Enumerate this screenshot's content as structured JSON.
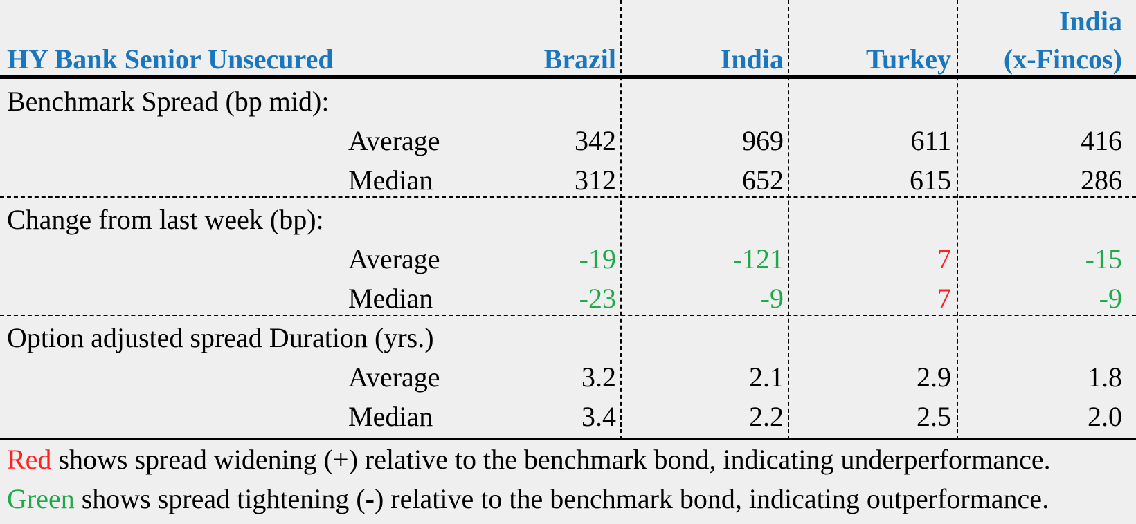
{
  "colors": {
    "header": "#1a76bd",
    "negative": "#1faa4a",
    "positive": "#ff2020"
  },
  "header": {
    "title": "HY Bank Senior Unsecured",
    "columns": [
      "Brazil",
      "India",
      "Turkey",
      "India (x-Fincos)"
    ],
    "col4_line1": "India",
    "col4_line2": "(x-Fincos)"
  },
  "sections": [
    {
      "title": "Benchmark Spread (bp mid):",
      "rows": [
        {
          "label": "Average",
          "values": [
            "342",
            "969",
            "611",
            "416"
          ],
          "colors": [
            "black",
            "black",
            "black",
            "black"
          ]
        },
        {
          "label": "Median",
          "values": [
            "312",
            "652",
            "615",
            "286"
          ],
          "colors": [
            "black",
            "black",
            "black",
            "black"
          ]
        }
      ]
    },
    {
      "title": "Change from last week (bp):",
      "rows": [
        {
          "label": "Average",
          "values": [
            "-19",
            "-121",
            "7",
            "-15"
          ],
          "colors": [
            "green",
            "green",
            "red",
            "green"
          ]
        },
        {
          "label": "Median",
          "values": [
            "-23",
            "-9",
            "7",
            "-9"
          ],
          "colors": [
            "green",
            "green",
            "red",
            "green"
          ]
        }
      ]
    },
    {
      "title": "Option adjusted spread Duration (yrs.)",
      "rows": [
        {
          "label": "Average",
          "values": [
            "3.2",
            "2.1",
            "2.9",
            "1.8"
          ],
          "colors": [
            "black",
            "black",
            "black",
            "black"
          ]
        },
        {
          "label": "Median",
          "values": [
            "3.4",
            "2.2",
            "2.5",
            "2.0"
          ],
          "colors": [
            "black",
            "black",
            "black",
            "black"
          ]
        }
      ]
    }
  ],
  "notes": [
    {
      "colored_word": "Red",
      "rest": " shows spread widening (+) relative to the benchmark bond, indicating underperformance."
    },
    {
      "colored_word": "Green",
      "rest": " shows spread tightening (-) relative to the benchmark bond, indicating outperformance."
    }
  ]
}
